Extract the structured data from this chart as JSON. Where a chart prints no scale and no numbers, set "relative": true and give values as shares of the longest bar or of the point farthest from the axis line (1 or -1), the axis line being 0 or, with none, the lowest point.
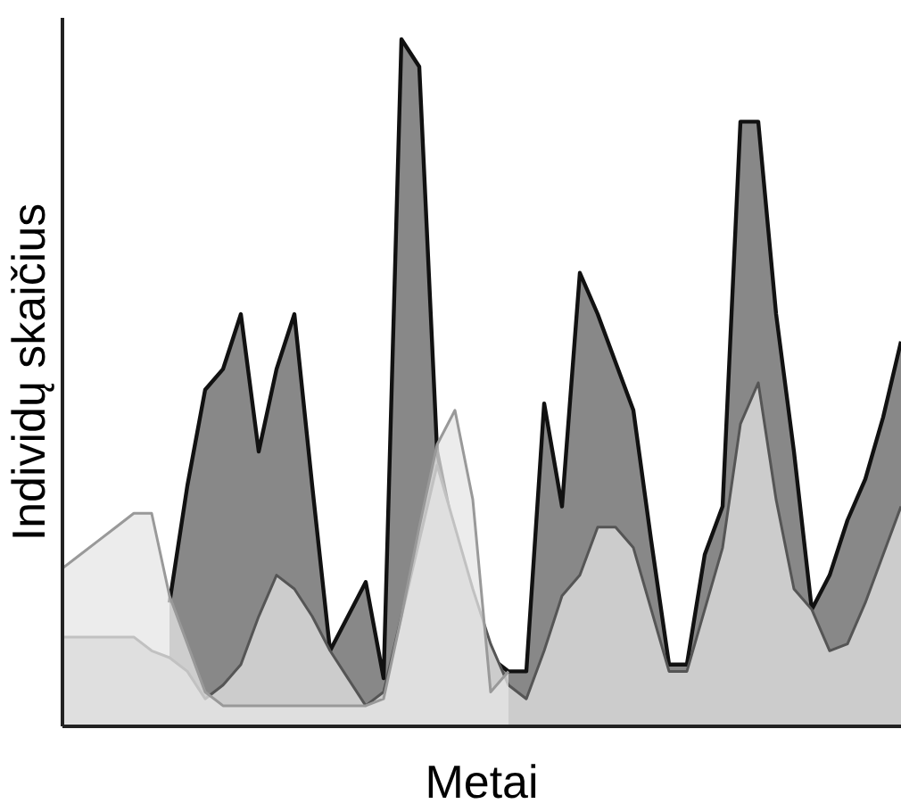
{
  "chart_data": {
    "type": "area",
    "relative": true,
    "xlabel": "Metai",
    "ylabel": "Individų skaičius",
    "categories": [
      null,
      null,
      null,
      null,
      null,
      null,
      null,
      null,
      null,
      null,
      null,
      null,
      null,
      null,
      null,
      null,
      null,
      null,
      null,
      null,
      null,
      null,
      null,
      null,
      null,
      null,
      null,
      null,
      null,
      null,
      null,
      null,
      null,
      null,
      null,
      null,
      null,
      null,
      null,
      null,
      null,
      null,
      null,
      null,
      null,
      null,
      null,
      null
    ],
    "series": [
      {
        "color": "#888888",
        "values": [
          null,
          null,
          null,
          null,
          null,
          null,
          0.18,
          0.35,
          0.49,
          0.52,
          0.6,
          0.4,
          0.52,
          0.6,
          0.35,
          0.11,
          0.16,
          0.21,
          0.07,
          1.0,
          0.96,
          0.4,
          0.27,
          0.18,
          0.1,
          0.08,
          0.08,
          0.47,
          0.32,
          0.66,
          0.6,
          0.53,
          0.46,
          0.27,
          0.09,
          0.09,
          0.25,
          0.32,
          0.88,
          0.88,
          0.6,
          0.4,
          0.17,
          0.22,
          0.3,
          0.36,
          0.45,
          0.56
        ]
      },
      {
        "color": "#cccccc",
        "values": [
          0.13,
          0.13,
          0.13,
          0.13,
          0.13,
          0.11,
          0.1,
          0.08,
          0.04,
          0.06,
          0.09,
          0.16,
          0.22,
          0.2,
          0.16,
          0.11,
          0.07,
          0.03,
          0.05,
          0.16,
          0.27,
          0.38,
          0.29,
          0.2,
          0.12,
          0.06,
          0.04,
          0.11,
          0.19,
          0.22,
          0.29,
          0.29,
          0.26,
          0.17,
          0.08,
          0.08,
          0.17,
          0.26,
          0.44,
          0.5,
          0.33,
          0.2,
          0.17,
          0.11,
          0.12,
          0.18,
          0.25,
          0.32
        ]
      },
      {
        "color": "#e6e6e6",
        "values": [
          0.23,
          0.25,
          0.27,
          0.29,
          0.31,
          0.31,
          0.19,
          0.12,
          0.05,
          0.03,
          0.03,
          0.03,
          0.03,
          0.03,
          0.03,
          0.03,
          0.03,
          0.03,
          0.04,
          0.16,
          0.29,
          0.41,
          0.46,
          0.33,
          0.05,
          0.08,
          null,
          null,
          null,
          null,
          null,
          null,
          null,
          null,
          null,
          null,
          null,
          null,
          null,
          null,
          null,
          null,
          null,
          null,
          null,
          null,
          null,
          null
        ]
      }
    ]
  }
}
